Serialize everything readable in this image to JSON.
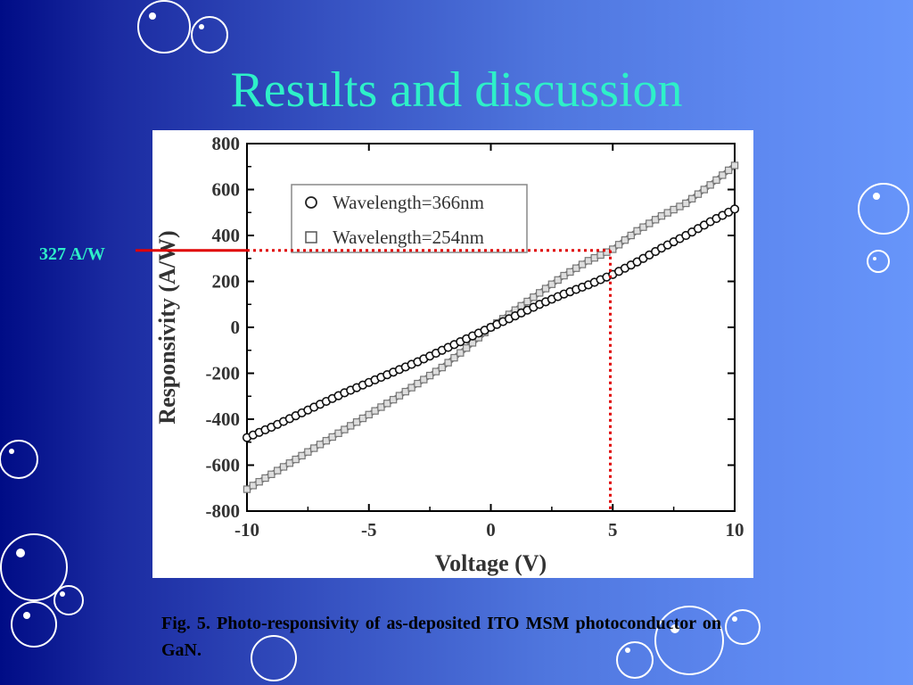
{
  "slide": {
    "title": "Results and discussion",
    "callout_label": "327 A/W",
    "caption": "Fig. 5. Photo-responsivity of as-deposited ITO MSM photoconductor on GaN.",
    "colors": {
      "title": "#2ef0c8",
      "callout_line": "#e00000",
      "guide_lines": "#e00000",
      "background_left": "#000c86",
      "background_right": "#6795fa"
    }
  },
  "chart_data": {
    "type": "scatter",
    "xlabel": "Voltage (V)",
    "ylabel": "Responsivity (A/W)",
    "xlim": [
      -10,
      10
    ],
    "ylim": [
      -800,
      800
    ],
    "xticks": [
      -10,
      -5,
      0,
      5,
      10
    ],
    "yticks": [
      -800,
      -600,
      -400,
      -200,
      0,
      200,
      400,
      600,
      800
    ],
    "legend_position": "top-left",
    "grid": false,
    "series": [
      {
        "name": "Wavelength=366nm",
        "marker": "circle",
        "x": [
          -10,
          -9,
          -8,
          -7,
          -6,
          -5,
          -4,
          -3,
          -2,
          -1,
          0,
          1,
          2,
          3,
          4,
          5,
          6,
          7,
          8,
          9,
          10
        ],
        "y": [
          -480,
          -435,
          -385,
          -335,
          -285,
          -240,
          -195,
          -150,
          -100,
          -50,
          0,
          50,
          100,
          145,
          185,
          230,
          285,
          345,
          400,
          460,
          515
        ]
      },
      {
        "name": "Wavelength=254nm",
        "marker": "square",
        "x": [
          -10,
          -9,
          -8,
          -7,
          -6,
          -5,
          -4,
          -3,
          -2,
          -1,
          0,
          1,
          2,
          3,
          4,
          5,
          6,
          7,
          8,
          9,
          10
        ],
        "y": [
          -705,
          -640,
          -575,
          -510,
          -445,
          -380,
          -315,
          -245,
          -175,
          -90,
          0,
          75,
          150,
          225,
          290,
          340,
          420,
          485,
          540,
          620,
          705
        ]
      }
    ],
    "annotation": {
      "label": "327 A/W",
      "x": 4.9,
      "y": 335
    }
  }
}
